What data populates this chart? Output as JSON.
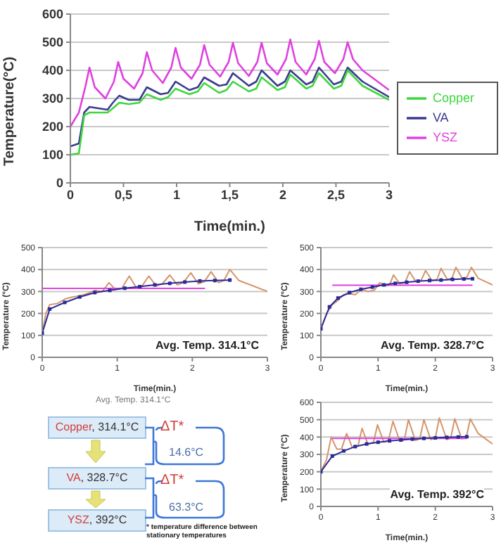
{
  "chart_data": [
    {
      "type": "line",
      "xlabel": "Time(min.)",
      "ylabel": "Temperature(°C)",
      "xlim": [
        0,
        3
      ],
      "xticks": [
        0,
        {
          "value": 0.5,
          "label": "0,5"
        },
        1,
        {
          "value": 1.5,
          "label": "1,5"
        },
        2,
        {
          "value": 2.5,
          "label": "2,5"
        },
        3
      ],
      "ylim": [
        0,
        600
      ],
      "yticks": [
        0,
        100,
        200,
        300,
        400,
        500,
        600
      ],
      "grid": "y",
      "legend": "right",
      "marker": "none",
      "series": [
        {
          "name": "VA",
          "color": "#3b3b8f",
          "x": [
            0,
            0.08,
            0.13,
            0.18,
            0.35,
            0.4,
            0.46,
            0.55,
            0.65,
            0.72,
            0.85,
            0.92,
            0.99,
            1.12,
            1.2,
            1.26,
            1.4,
            1.47,
            1.53,
            1.68,
            1.75,
            1.8,
            1.95,
            2.02,
            2.07,
            2.22,
            2.28,
            2.34,
            2.48,
            2.55,
            2.61,
            2.75,
            3.0
          ],
          "values": [
            130,
            140,
            250,
            270,
            260,
            285,
            310,
            295,
            295,
            340,
            315,
            320,
            360,
            330,
            340,
            375,
            345,
            350,
            390,
            345,
            360,
            400,
            345,
            360,
            400,
            350,
            360,
            410,
            350,
            360,
            410,
            360,
            305
          ]
        },
        {
          "name": "YSZ",
          "color": "#e040e0",
          "x": [
            0,
            0.08,
            0.14,
            0.18,
            0.23,
            0.33,
            0.41,
            0.45,
            0.5,
            0.6,
            0.68,
            0.72,
            0.77,
            0.87,
            0.95,
            0.99,
            1.04,
            1.14,
            1.22,
            1.26,
            1.31,
            1.41,
            1.49,
            1.53,
            1.58,
            1.68,
            1.76,
            1.8,
            1.85,
            1.95,
            2.03,
            2.07,
            2.12,
            2.22,
            2.3,
            2.34,
            2.39,
            2.49,
            2.57,
            2.61,
            2.66,
            2.75,
            3.0
          ],
          "values": [
            200,
            250,
            340,
            410,
            340,
            300,
            360,
            430,
            370,
            335,
            390,
            465,
            400,
            355,
            410,
            480,
            410,
            370,
            420,
            490,
            420,
            378,
            430,
            498,
            425,
            380,
            430,
            498,
            425,
            385,
            440,
            510,
            430,
            385,
            440,
            505,
            430,
            390,
            440,
            500,
            440,
            400,
            330
          ]
        },
        {
          "name": "Copper",
          "color": "#3ed63e",
          "x": [
            0,
            0.08,
            0.13,
            0.18,
            0.35,
            0.4,
            0.46,
            0.55,
            0.65,
            0.72,
            0.85,
            0.92,
            0.99,
            1.12,
            1.2,
            1.26,
            1.4,
            1.47,
            1.53,
            1.68,
            1.75,
            1.8,
            1.95,
            2.02,
            2.07,
            2.22,
            2.28,
            2.34,
            2.48,
            2.55,
            2.61,
            2.75,
            3.0
          ],
          "values": [
            100,
            105,
            240,
            250,
            250,
            265,
            285,
            280,
            285,
            315,
            295,
            305,
            335,
            315,
            325,
            355,
            320,
            330,
            360,
            325,
            335,
            375,
            330,
            340,
            385,
            335,
            345,
            390,
            335,
            345,
            400,
            345,
            295
          ]
        }
      ]
    },
    {
      "type": "line",
      "xlabel": "Time(min.)",
      "ylabel": "Temperature (°C)",
      "xlim": [
        0,
        3
      ],
      "xticks": [
        0,
        1,
        2,
        3
      ],
      "ylim": [
        0,
        500
      ],
      "yticks": [
        0,
        100,
        200,
        300,
        400,
        500
      ],
      "grid": "y",
      "annotations": [
        "Avg. Temp. 314.1°C"
      ],
      "series": [
        {
          "color": "#d4946a",
          "marker": "none",
          "x": [
            0,
            0.05,
            0.1,
            0.2,
            0.3,
            0.4,
            0.5,
            0.6,
            0.7,
            0.8,
            0.89,
            0.97,
            1.06,
            1.16,
            1.25,
            1.33,
            1.42,
            1.52,
            1.6,
            1.7,
            1.8,
            1.88,
            1.98,
            2.08,
            2.16,
            2.25,
            2.35,
            2.42,
            2.5,
            2.62,
            3.0
          ],
          "values": [
            110,
            200,
            240,
            245,
            265,
            275,
            280,
            290,
            305,
            300,
            340,
            310,
            315,
            370,
            320,
            325,
            370,
            325,
            335,
            375,
            330,
            340,
            385,
            335,
            345,
            390,
            340,
            350,
            400,
            350,
            300
          ]
        },
        {
          "color": "#e040e0",
          "marker": "none",
          "x": [
            0,
            2.17
          ],
          "values": [
            314.1,
            314.1
          ]
        },
        {
          "color": "#2a2a9a",
          "marker": "square",
          "x": [
            0,
            0.1,
            0.3,
            0.5,
            0.7,
            0.9,
            1.1,
            1.3,
            1.5,
            1.7,
            1.9,
            2.1,
            2.3,
            2.5
          ],
          "values": [
            110,
            220,
            250,
            275,
            295,
            305,
            315,
            322,
            330,
            337,
            343,
            348,
            350,
            352
          ]
        }
      ]
    },
    {
      "type": "line",
      "xlabel": "Time(min.)",
      "ylabel": "Temperature (°C)",
      "xlim": [
        0,
        3
      ],
      "xticks": [
        0,
        1,
        2,
        3
      ],
      "ylim": [
        0,
        500
      ],
      "yticks": [
        0,
        100,
        200,
        300,
        400,
        500
      ],
      "grid": "y",
      "annotations": [
        "Avg. Temp. 328.7°C"
      ],
      "series": [
        {
          "color": "#d4946a",
          "marker": "none",
          "x": [
            0,
            0.1,
            0.2,
            0.3,
            0.4,
            0.5,
            0.6,
            0.71,
            0.82,
            0.93,
            1.03,
            1.13,
            1.2,
            1.27,
            1.38,
            1.47,
            1.55,
            1.66,
            1.75,
            1.83,
            1.94,
            2.03,
            2.1,
            2.21,
            2.29,
            2.36,
            2.47,
            2.55,
            2.63,
            2.75,
            3.0
          ],
          "values": [
            130,
            200,
            240,
            260,
            285,
            290,
            285,
            310,
            300,
            305,
            340,
            325,
            330,
            375,
            335,
            340,
            390,
            345,
            350,
            395,
            350,
            355,
            405,
            355,
            360,
            410,
            360,
            365,
            410,
            360,
            330
          ]
        },
        {
          "color": "#e040e0",
          "marker": "none",
          "x": [
            0.2,
            2.65
          ],
          "values": [
            328.7,
            328.7
          ]
        },
        {
          "color": "#2a2a9a",
          "marker": "square",
          "x": [
            0,
            0.15,
            0.3,
            0.5,
            0.7,
            0.9,
            1.1,
            1.3,
            1.5,
            1.7,
            1.9,
            2.1,
            2.3,
            2.5,
            2.65
          ],
          "values": [
            130,
            230,
            270,
            295,
            310,
            320,
            330,
            337,
            342,
            347,
            350,
            352,
            355,
            357,
            358
          ]
        }
      ]
    },
    {
      "type": "other",
      "annotations": [
        "Avg. Temp. 314.1°C",
        "Copper, 314.1°C",
        "VA, 328.7°C",
        "YSZ, 392°C",
        "ΔT*",
        "14.6°C",
        "ΔT*",
        "63.3°C",
        "* temperature difference between stationary temperatures"
      ]
    },
    {
      "type": "line",
      "xlabel": "Time(min.)",
      "ylabel": "Temperature (°C)",
      "xlim": [
        0,
        3
      ],
      "xticks": [
        0,
        1,
        2,
        3
      ],
      "ylim": [
        0,
        600
      ],
      "yticks": [
        0,
        100,
        200,
        300,
        400,
        500,
        600
      ],
      "grid": "y",
      "annotations": [
        "Avg. Temp. 392°C"
      ],
      "series": [
        {
          "color": "#d4946a",
          "marker": "none",
          "x": [
            0,
            0.1,
            0.18,
            0.28,
            0.36,
            0.45,
            0.55,
            0.65,
            0.72,
            0.82,
            0.92,
            0.99,
            1.1,
            1.18,
            1.26,
            1.38,
            1.46,
            1.53,
            1.65,
            1.73,
            1.8,
            1.92,
            2.0,
            2.07,
            2.2,
            2.27,
            2.34,
            2.46,
            2.54,
            2.61,
            2.75,
            3.0
          ],
          "values": [
            200,
            270,
            400,
            330,
            330,
            420,
            340,
            350,
            450,
            360,
            370,
            470,
            370,
            380,
            490,
            375,
            385,
            500,
            380,
            390,
            500,
            385,
            395,
            510,
            385,
            395,
            505,
            390,
            395,
            505,
            420,
            360
          ]
        },
        {
          "color": "#e040e0",
          "marker": "none",
          "x": [
            0.2,
            2.55
          ],
          "values": [
            392,
            392
          ]
        },
        {
          "color": "#2a2a9a",
          "marker": "square",
          "x": [
            0,
            0.2,
            0.4,
            0.6,
            0.8,
            1.0,
            1.2,
            1.4,
            1.6,
            1.8,
            2.0,
            2.2,
            2.4,
            2.55
          ],
          "values": [
            200,
            290,
            320,
            345,
            360,
            370,
            378,
            383,
            388,
            392,
            395,
            398,
            400,
            402
          ]
        }
      ]
    }
  ]
}
